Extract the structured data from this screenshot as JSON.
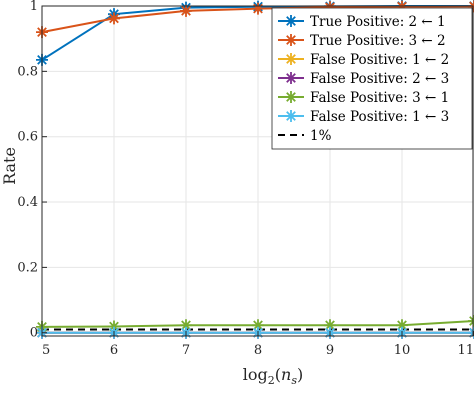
{
  "chart_data": {
    "type": "line",
    "xlabel": "log2(ns)",
    "xlabel_main": "log",
    "xlabel_sub": "2",
    "xlabel_open": "(",
    "xlabel_var": "n",
    "xlabel_var_sub": "s",
    "xlabel_close": ")",
    "ylabel": "Rate",
    "xlim": [
      5,
      11
    ],
    "ylim": [
      -0.01,
      1.0
    ],
    "grid": true,
    "legend_position": "top-right",
    "x": [
      5,
      6,
      7,
      8,
      9,
      10,
      11
    ],
    "xticks": [
      "5",
      "6",
      "7",
      "8",
      "9",
      "10",
      "11"
    ],
    "yticks": [
      {
        "value": 0,
        "label": "0"
      },
      {
        "value": 0.2,
        "label": "0.2"
      },
      {
        "value": 0.4,
        "label": "0.4"
      },
      {
        "value": 0.6,
        "label": "0.6"
      },
      {
        "value": 0.8,
        "label": "0.8"
      },
      {
        "value": 1.0,
        "label": "1"
      }
    ],
    "series": [
      {
        "name": "True Positive: 2 ← 1",
        "color": "#0072BD",
        "marker": "asterisk",
        "values": [
          0.835,
          0.975,
          0.995,
          0.998,
          0.999,
          1.0,
          1.0
        ]
      },
      {
        "name": "True Positive: 3 ← 2",
        "color": "#D95319",
        "marker": "asterisk",
        "values": [
          0.92,
          0.962,
          0.985,
          0.992,
          0.996,
          0.998,
          0.999
        ]
      },
      {
        "name": "False Positive: 1 ← 2",
        "color": "#EDB120",
        "marker": "asterisk",
        "values": [
          0,
          0,
          0,
          0,
          0,
          0,
          0
        ]
      },
      {
        "name": "False Positive: 2 ← 3",
        "color": "#7E2F8E",
        "marker": "asterisk",
        "values": [
          0,
          0,
          0,
          0,
          0,
          0,
          0
        ]
      },
      {
        "name": "False Positive: 3 ← 1",
        "color": "#77AC30",
        "marker": "asterisk",
        "values": [
          0.018,
          0.019,
          0.023,
          0.023,
          0.023,
          0.023,
          0.036
        ]
      },
      {
        "name": "False Positive: 1 ← 3",
        "color": "#4DBEEE",
        "marker": "asterisk",
        "values": [
          0,
          0,
          0,
          0,
          0,
          0,
          0
        ]
      }
    ],
    "reference_line": {
      "name": "1%",
      "value": 0.01,
      "color": "#000000",
      "style": "dashed"
    }
  }
}
